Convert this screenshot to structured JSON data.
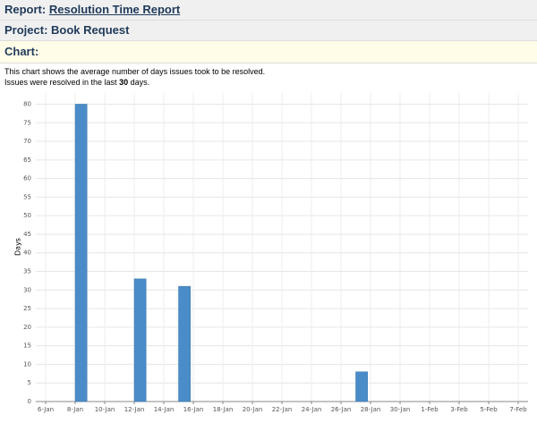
{
  "header": {
    "report_label": "Report:",
    "report_name": "Resolution Time Report",
    "project_label": "Project:",
    "project_name": "Book Request",
    "chart_heading": "Chart:"
  },
  "description": {
    "line1": "This chart shows the average number of days issues took to be resolved.",
    "line2_start": "Issues were resolved in the last",
    "line2_days": "30",
    "line2_end": "days."
  },
  "chart_data": {
    "type": "bar",
    "y_label": "Days",
    "color": "#4a8cc7",
    "grid": true,
    "categories": [
      "6-Jan",
      null,
      "8-Jan",
      null,
      "10-Jan",
      null,
      "12-Jan",
      null,
      "14-Jan",
      null,
      "16-Jan",
      null,
      "18-Jan",
      null,
      "20-Jan",
      null,
      "22-Jan",
      null,
      "24-Jan",
      null,
      "26-Jan",
      null,
      "28-Jan",
      null,
      "30-Jan",
      null,
      "1-Feb",
      null,
      "3-Feb",
      null,
      "5-Feb",
      null,
      "7-Feb"
    ],
    "values": [
      null,
      null,
      80,
      null,
      null,
      null,
      33,
      null,
      null,
      31,
      null,
      null,
      null,
      null,
      null,
      null,
      null,
      null,
      null,
      null,
      null,
      8,
      null,
      null,
      null,
      null,
      null,
      null,
      null,
      null,
      null,
      null,
      null
    ],
    "ylim": [
      0,
      83
    ],
    "yticks": [
      0,
      5,
      10,
      15,
      20,
      25,
      30,
      35,
      40,
      45,
      50,
      55,
      60,
      65,
      70,
      75,
      80
    ]
  }
}
